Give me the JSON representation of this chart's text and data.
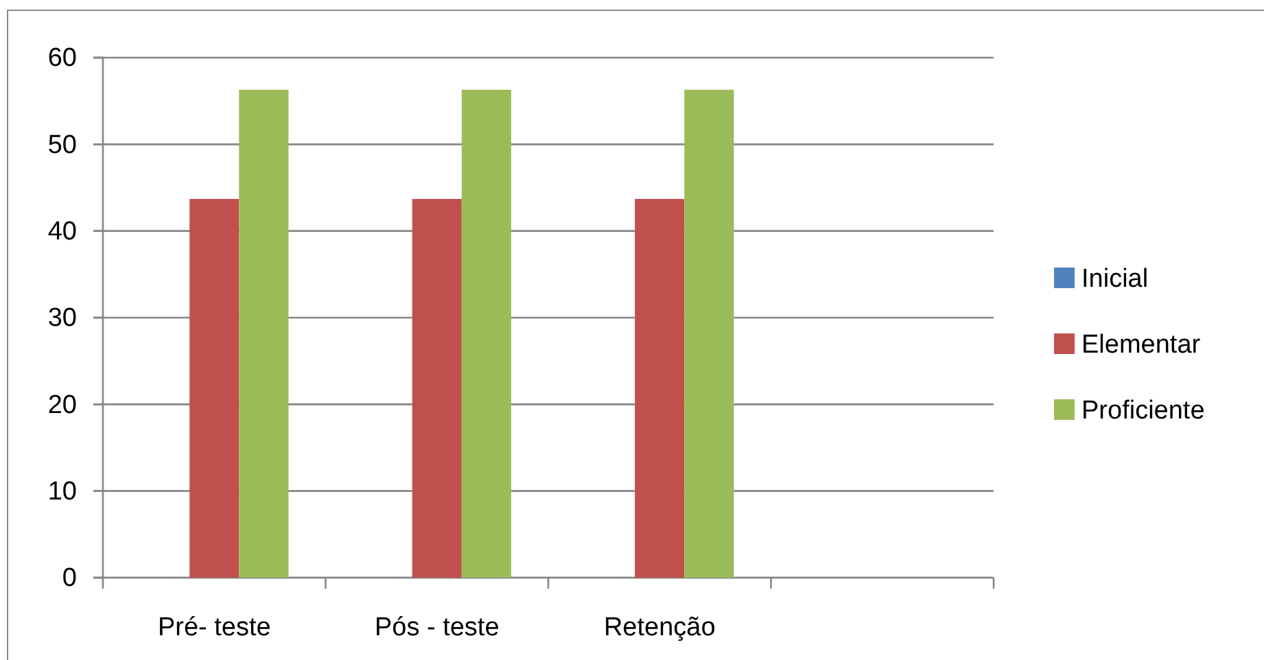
{
  "chart_data": {
    "type": "bar",
    "categories": [
      "Pré- teste",
      "Pós - teste",
      "Retenção",
      null
    ],
    "series": [
      {
        "name": "Inicial",
        "color": "#4f81bd",
        "values": [
          0,
          0,
          0,
          null
        ]
      },
      {
        "name": "Elementar",
        "color": "#c0504d",
        "values": [
          43.7,
          43.7,
          43.7,
          null
        ]
      },
      {
        "name": "Proficiente",
        "color": "#9bbb59",
        "values": [
          56.3,
          56.3,
          56.3,
          null
        ]
      }
    ],
    "ylim": [
      0,
      60
    ],
    "yticks": [
      0,
      10,
      20,
      30,
      40,
      50,
      60
    ],
    "grid": "y",
    "legend": "right"
  }
}
